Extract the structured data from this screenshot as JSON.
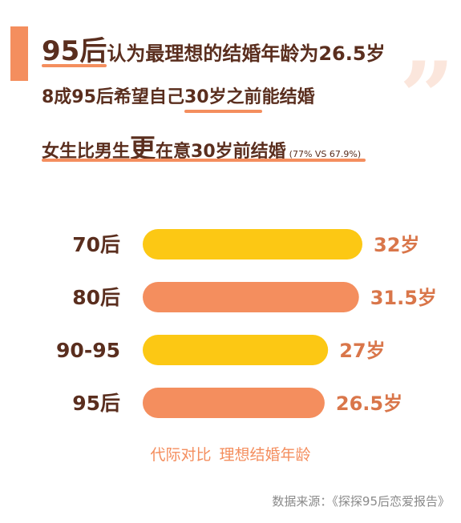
{
  "headline": {
    "line1_big": "95后",
    "line1_rest": "认为最理想的结婚年龄为26.5岁",
    "line2_a": "8成95后希望自己",
    "line2_ul": "30岁之前",
    "line2_b": "能结婚",
    "line3_a": "女生比男生",
    "line3_big": "更",
    "line3_b": "在意30岁前结婚",
    "line3_small": "(77% VS 67.9%)"
  },
  "quote_glyph": "”",
  "colors": {
    "orange": "#f48e5e",
    "yellow": "#fcc814",
    "text": "#5a2e1e",
    "value_text": "#d9764a"
  },
  "chart_data": {
    "type": "bar",
    "orientation": "horizontal",
    "categories": [
      "70后",
      "80后",
      "90-95",
      "95后"
    ],
    "values": [
      32,
      31.5,
      27,
      26.5
    ],
    "value_labels": [
      "32岁",
      "31.5岁",
      "27岁",
      "26.5岁"
    ],
    "bar_colors": [
      "#fcc814",
      "#f48e5e",
      "#fcc814",
      "#f48e5e"
    ],
    "xlim": [
      0,
      32
    ],
    "title": "",
    "caption": "代际对比  理想结婚年龄"
  },
  "source": "数据来源：《探探95后恋爱报告》"
}
